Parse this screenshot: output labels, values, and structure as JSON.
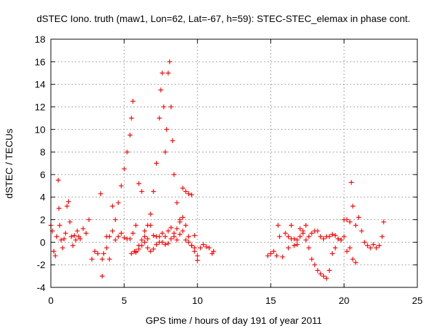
{
  "chart_data": {
    "type": "scatter",
    "title": "dSTEC Iono. truth (maw1, Lon=62, Lat=-67, h=59): STEC-STEC_elemax in phase cont.",
    "xlabel": "GPS time / hours of day 191 of year 2011",
    "ylabel": "dSTEC  / TECUs",
    "xlim": [
      0,
      25
    ],
    "ylim": [
      -4,
      18
    ],
    "xticks": [
      "0",
      "5",
      "10",
      "15",
      "20",
      "25"
    ],
    "yticks": [
      "-4",
      "-2",
      "0",
      "2",
      "4",
      "6",
      "8",
      "10",
      "12",
      "14",
      "16",
      "18"
    ],
    "grid": true,
    "marker": "+",
    "color": "#ff0000",
    "series": [
      {
        "x": [
          0.0,
          0.1,
          0.2,
          0.3,
          0.4,
          0.5,
          0.55,
          0.6,
          0.7,
          0.8,
          0.9,
          1.0,
          1.1,
          1.2,
          1.3,
          1.4,
          1.5,
          1.6,
          1.7,
          1.8,
          1.9,
          2.0,
          2.2,
          2.4,
          2.6,
          2.8,
          3.0,
          3.2,
          3.4,
          3.5,
          3.6,
          3.8,
          4.0,
          4.2,
          4.4,
          4.6,
          4.8,
          5.0,
          5.2,
          5.4,
          5.6,
          5.8,
          6.0,
          6.2,
          6.4,
          6.6,
          6.8,
          7.0,
          7.2,
          7.4,
          7.6,
          7.8,
          8.0,
          8.2,
          8.4,
          8.6,
          8.8,
          9.0,
          9.2,
          9.4,
          9.6,
          9.8,
          10.0,
          10.2,
          10.4,
          10.6,
          10.8,
          11.0,
          11.1
        ],
        "y": [
          1.5,
          1.0,
          -0.8,
          -1.2,
          0.5,
          5.5,
          3.0,
          1.5,
          0.2,
          -0.5,
          0.3,
          0.8,
          3.2,
          3.6,
          1.8,
          0.5,
          -0.3,
          0.6,
          0.2,
          1.0,
          0.5,
          0.3,
          1.2,
          0.8,
          2.0,
          -1.5,
          -0.8,
          -1.0,
          4.3,
          -3.0,
          -1.0,
          0.5,
          -1.5,
          3.2,
          0.2,
          0.5,
          0.8,
          0.4,
          0.3,
          0.3,
          0.8,
          1.5,
          5.2,
          4.5,
          1.0,
          0.3,
          1.5,
          0.6,
          0.5,
          0.5,
          0.8,
          0.5,
          1.0,
          1.3,
          0.5,
          0.2,
          0.7,
          4.8,
          4.5,
          4.3,
          4.2,
          0.6,
          -1.6,
          -0.5,
          -0.2,
          -0.4,
          -0.5,
          -1.0,
          -0.8
        ]
      },
      {
        "x": [
          3.5,
          3.8,
          4.0,
          4.2,
          4.4,
          4.6,
          4.8,
          5.0,
          5.2,
          5.4,
          5.5,
          5.6,
          5.7,
          5.8,
          6.0,
          6.2,
          6.4,
          6.6,
          6.8,
          7.0,
          7.2,
          7.4,
          7.5,
          7.6,
          7.7,
          7.8,
          7.9,
          8.0,
          8.1,
          8.2,
          8.3,
          8.4,
          8.6,
          8.8,
          9.0,
          9.2,
          9.4,
          9.6,
          9.8
        ],
        "y": [
          -1.5,
          -0.5,
          0.5,
          1.0,
          2.0,
          3.5,
          5.0,
          6.5,
          8.0,
          9.5,
          11.0,
          12.5,
          -0.8,
          -0.9,
          -0.6,
          -0.3,
          0.5,
          1.5,
          2.5,
          4.5,
          7.0,
          11.0,
          13.5,
          15.0,
          12.0,
          8.0,
          10.0,
          15.0,
          16.0,
          12.0,
          9.0,
          6.0,
          3.5,
          2.0,
          1.0,
          0.2,
          0.0,
          -0.3,
          -0.5
        ]
      },
      {
        "x": [
          5.5,
          5.8,
          6.0,
          6.2,
          6.4,
          6.6,
          6.8,
          7.0,
          7.2,
          7.4,
          7.6,
          7.8,
          8.0,
          8.2,
          8.4,
          8.6,
          8.8,
          9.0,
          9.2,
          9.4,
          9.6,
          9.8,
          10.0
        ],
        "y": [
          -1.0,
          -0.8,
          -0.3,
          0.2,
          0.0,
          -0.5,
          -0.8,
          -0.6,
          -0.2,
          0.0,
          0.0,
          -0.2,
          -0.1,
          0.3,
          0.8,
          1.2,
          1.8,
          2.2,
          1.5,
          0.5,
          -0.3,
          -0.8,
          -1.2
        ]
      },
      {
        "x": [
          14.8,
          15.0,
          15.2,
          15.4,
          15.5,
          15.6,
          15.8,
          16.0,
          16.2,
          16.4,
          16.6,
          16.8,
          17.0,
          17.2,
          17.4,
          17.6,
          17.8,
          18.0,
          18.2,
          18.4,
          18.6,
          18.8,
          19.0,
          19.2,
          19.4,
          19.6,
          19.8,
          20.0,
          20.2,
          20.4,
          20.5,
          20.6,
          20.8,
          21.0,
          21.2,
          21.4,
          21.6,
          21.8,
          22.0,
          22.2,
          22.4,
          22.6,
          22.7
        ],
        "y": [
          -1.2,
          -1.0,
          -0.8,
          -1.2,
          1.5,
          0.5,
          -1.3,
          0.8,
          -0.5,
          1.5,
          0.3,
          -0.2,
          1.2,
          0.8,
          1.5,
          0.5,
          0.8,
          1.0,
          1.0,
          0.5,
          0.3,
          0.5,
          0.5,
          0.7,
          0.6,
          0.3,
          0.2,
          2.0,
          2.0,
          1.8,
          5.3,
          3.2,
          1.5,
          2.2,
          1.0,
          0.0,
          -0.3,
          -0.5,
          -0.2,
          -0.5,
          -0.3,
          0.5,
          1.8
        ]
      },
      {
        "x": [
          16.2,
          16.4,
          16.6,
          16.8,
          17.0,
          17.2,
          17.4,
          17.6,
          17.8,
          18.0,
          18.2,
          18.4,
          18.6,
          18.8,
          19.0,
          19.2,
          19.4,
          19.6,
          19.8,
          20.0,
          20.2,
          20.4,
          20.6,
          20.8
        ],
        "y": [
          0.5,
          0.3,
          -0.3,
          0.2,
          0.5,
          1.0,
          0.2,
          -0.5,
          -1.5,
          -2.0,
          -2.5,
          -2.8,
          -3.0,
          -3.2,
          -2.5,
          -1.0,
          -0.5,
          0.3,
          0.2,
          0.5,
          -0.8,
          -0.5,
          -1.5,
          -1.8
        ]
      }
    ]
  }
}
